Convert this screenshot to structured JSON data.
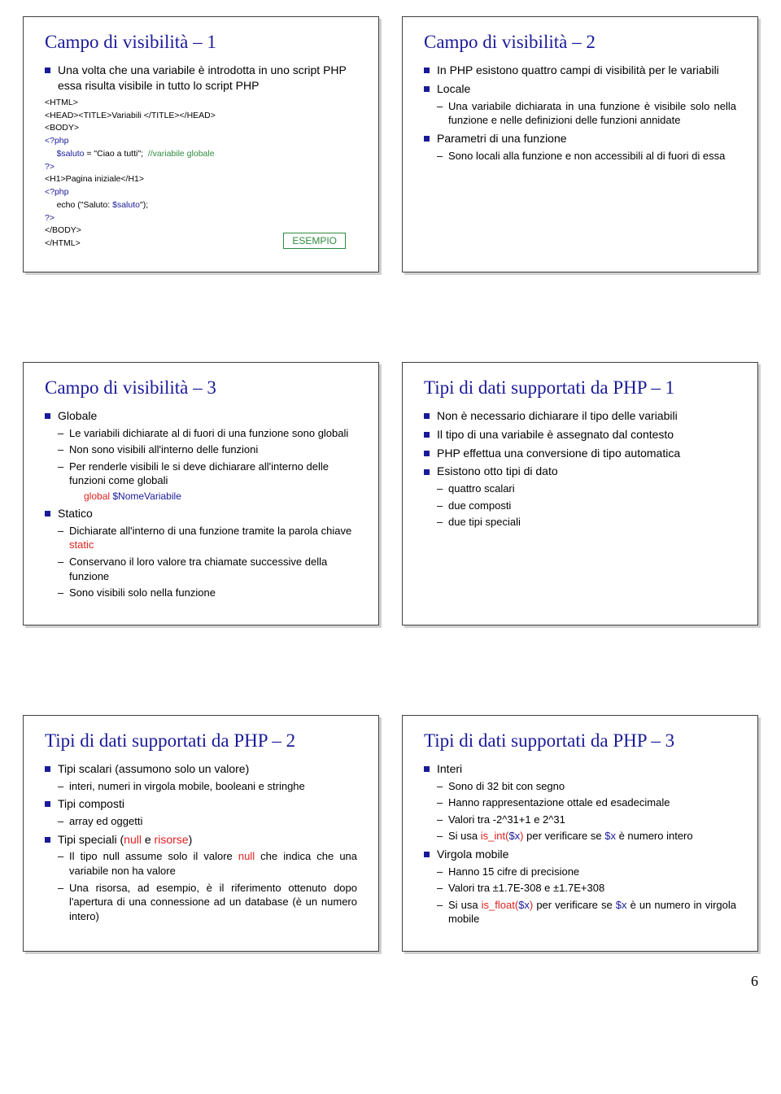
{
  "colors": {
    "title": "#1a1a99",
    "bullet": "#1a1a99",
    "border": "#404040",
    "codeBlue": "#1a1a99",
    "codeGreen": "#2e8b3e",
    "codeRed": "#e02020",
    "background": "#ffffff"
  },
  "layout": {
    "columns": 2,
    "rows": 3,
    "pageWidth": 960,
    "pageHeight": 1345
  },
  "pageNumber": "6",
  "slides": {
    "s1": {
      "title": "Campo di visibilità – 1",
      "intro": "Una volta che una variabile è introdotta in uno script PHP essa risulta visibile in tutto lo script PHP",
      "esempioLabel": "ESEMPIO",
      "code": {
        "l1": "<HTML>",
        "l2": "<HEAD><TITLE>Variabili </TITLE></HEAD>",
        "l3": "<BODY>",
        "l4a": "<?php",
        "l5a": "     $saluto",
        "l5b": " = \"Ciao a tutti\";  ",
        "l5c": "//variabile globale",
        "l6a": "?>",
        "l7": "<H1>Pagina iniziale</H1>",
        "l8a": "<?php",
        "l9a": "     echo (\"Saluto: ",
        "l9b": "$saluto",
        "l9c": "\");",
        "l10a": "?>",
        "l11": "</BODY>",
        "l12": "</HTML>"
      }
    },
    "s2": {
      "title": "Campo di visibilità – 2",
      "b1": "In PHP esistono quattro campi di visibilità per le variabili",
      "b2": "Locale",
      "b2s1": "Una variabile dichiarata in una funzione è visibile solo nella funzione e nelle definizioni delle funzioni annidate",
      "b3": "Parametri di una funzione",
      "b3s1": "Sono locali alla funzione e non accessibili al di fuori di essa"
    },
    "s3": {
      "title": "Campo di visibilità – 3",
      "b1": "Globale",
      "b1s1": "Le variabili dichiarate al di fuori di una funzione sono globali",
      "b1s2": "Non sono visibili all'interno delle funzioni",
      "b1s3": "Per renderle visibili le si deve dichiarare all'interno delle funzioni come globali",
      "b1s3g1": "global ",
      "b1s3g2": "$NomeVariabile",
      "b2": "Statico",
      "b2s1a": "Dichiarate all'interno di una funzione tramite la parola chiave ",
      "b2s1b": "static",
      "b2s2": "Conservano il loro valore tra chiamate successive della funzione",
      "b2s3": "Sono visibili solo nella funzione"
    },
    "s4": {
      "title": "Tipi di dati supportati da PHP – 1",
      "b1": "Non è necessario dichiarare il tipo delle variabili",
      "b2": "Il tipo di una variabile è assegnato dal contesto",
      "b3": "PHP effettua una conversione di tipo automatica",
      "b4": "Esistono otto tipi di dato",
      "b4s1": "quattro scalari",
      "b4s2": "due composti",
      "b4s3": "due tipi speciali"
    },
    "s5": {
      "title": "Tipi di dati supportati da PHP – 2",
      "b1": "Tipi scalari (assumono solo un valore)",
      "b1s1": "interi, numeri in virgola mobile, booleani e stringhe",
      "b2": "Tipi composti",
      "b2s1": "array ed oggetti",
      "b3a": "Tipi speciali (",
      "b3b": "null",
      "b3c": " e ",
      "b3d": "risorse",
      "b3e": ")",
      "b3s1a": "Il tipo null assume solo il valore ",
      "b3s1b": "null",
      "b3s1c": " che indica che una variabile non ha valore",
      "b3s2": "Una risorsa, ad esempio, è il riferimento ottenuto dopo l'apertura di una connessione ad un database (è un numero intero)"
    },
    "s6": {
      "title": "Tipi di dati supportati da PHP – 3",
      "b1": "Interi",
      "b1s1": "Sono di 32 bit con segno",
      "b1s2": "Hanno rappresentazione ottale ed esadecimale",
      "b1s3": "Valori tra -2^31+1 e 2^31",
      "b1s4a": "Si usa ",
      "b1s4b": "is_int(",
      "b1s4c": "$x",
      "b1s4d": ")",
      "b1s4e": " per verificare se ",
      "b1s4f": "$x",
      "b1s4g": " è numero intero",
      "b2": "Virgola mobile",
      "b2s1": "Hanno 15 cifre di precisione",
      "b2s2": "Valori tra ±1.7E-308 e ±1.7E+308",
      "b2s3a": "Si usa ",
      "b2s3b": "is_float(",
      "b2s3c": "$x",
      "b2s3d": ")",
      "b2s3e": " per verificare se ",
      "b2s3f": "$x",
      "b2s3g": " è un numero in virgola mobile"
    }
  }
}
